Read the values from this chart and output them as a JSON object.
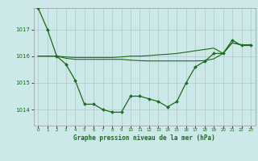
{
  "bg_color": "#cce8e8",
  "grid_color": "#b0c8c8",
  "line_color": "#1a6b1a",
  "marker_color": "#1a6b1a",
  "title": "Graphe pression niveau de la mer (hPa)",
  "xlim": [
    -0.5,
    23.5
  ],
  "ylim": [
    1013.4,
    1017.8
  ],
  "yticks": [
    1014,
    1015,
    1016,
    1017
  ],
  "xtick_labels": [
    "0",
    "1",
    "2",
    "3",
    "4",
    "5",
    "6",
    "7",
    "8",
    "9",
    "10",
    "11",
    "12",
    "13",
    "14",
    "15",
    "16",
    "17",
    "18",
    "19",
    "20",
    "21",
    "22",
    "23"
  ],
  "series1": [
    1017.8,
    1017.0,
    1016.0,
    1015.7,
    1015.1,
    1014.2,
    1014.2,
    1014.0,
    1013.9,
    1013.9,
    1014.5,
    1014.5,
    1014.4,
    1014.3,
    1014.1,
    1014.3,
    1015.0,
    1015.6,
    1015.8,
    1016.1,
    1016.1,
    1016.6,
    1016.4,
    1016.4
  ],
  "series2": [
    1016.0,
    1016.0,
    1016.0,
    1015.97,
    1015.95,
    1015.95,
    1015.95,
    1015.95,
    1015.95,
    1015.97,
    1016.0,
    1016.0,
    1016.02,
    1016.05,
    1016.07,
    1016.1,
    1016.15,
    1016.2,
    1016.25,
    1016.3,
    1016.1,
    1016.5,
    1016.42,
    1016.42
  ],
  "series3": [
    1016.0,
    1016.0,
    1016.0,
    1015.92,
    1015.88,
    1015.88,
    1015.88,
    1015.88,
    1015.88,
    1015.88,
    1015.85,
    1015.83,
    1015.82,
    1015.82,
    1015.82,
    1015.82,
    1015.82,
    1015.82,
    1015.83,
    1015.9,
    1016.1,
    1016.5,
    1016.42,
    1016.42
  ]
}
